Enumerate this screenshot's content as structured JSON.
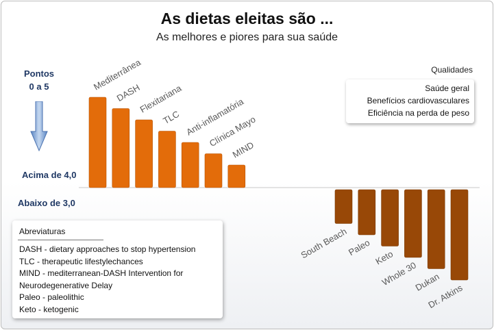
{
  "title": "As dietas eleitas são ...",
  "subtitle": "As melhores e piores para sua saúde",
  "axis_caption": {
    "line1": "Pontos",
    "line2": "0 a 5"
  },
  "above_label": "Acima de 4,0",
  "below_label": "Abaixo de 3,0",
  "qualities": {
    "title": "Qualidades",
    "items": [
      "Saúde geral",
      "Benefícios cardiovasculares",
      "Eficiência na perda de peso"
    ]
  },
  "abbreviations": {
    "title": "Abreviaturas",
    "items": [
      "DASH - dietary approaches to stop hypertension",
      "TLC - therapeutic lifestylechances",
      "MIND - mediterranean-DASH Intervention for",
      "Neurodegenerative Delay",
      "Paleo - paleolithic",
      "Keto - ketogenic"
    ]
  },
  "colors": {
    "top_bars": "#e36c0a",
    "bottom_bars": "#984807",
    "arrow": "#8db3e2",
    "axis_text": "#1f3864"
  },
  "icons": [
    "down-arrow-icon"
  ],
  "chart_data": {
    "type": "bar",
    "title": "As dietas eleitas são ...",
    "subtitle": "As melhores e piores para sua saúde",
    "series": [
      {
        "name": "Acima de 4,0",
        "categories": [
          "Mediterrânea",
          "DASH",
          "Flexitariana",
          "TLC",
          "Anti-inflamatória",
          "Clínica Mayo",
          "MIND"
        ],
        "values": [
          8,
          7,
          6,
          5,
          4,
          3,
          2
        ]
      },
      {
        "name": "Abaixo de 3,0",
        "categories": [
          "South Beach",
          "Paleo",
          "Keto",
          "Whole 30",
          "Dukan",
          "Dr. Atkins"
        ],
        "values": [
          3,
          4,
          5,
          6,
          7,
          8
        ]
      }
    ],
    "grid": false,
    "legend": "none"
  }
}
